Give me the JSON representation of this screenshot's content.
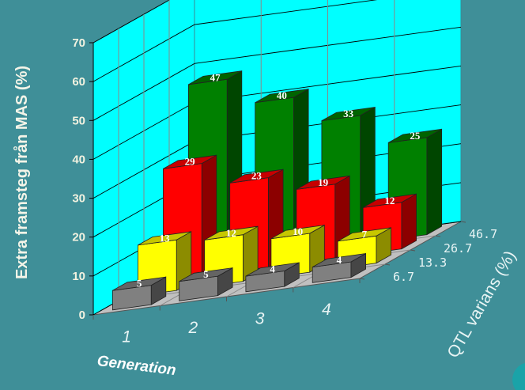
{
  "chart_data": {
    "type": "bar",
    "variant": "3d-grouped",
    "title": "",
    "ylabel": "Extra framsteg från MAS (%)",
    "xlabel": "Generation",
    "zlabel": "QTL varians (%)",
    "categories": [
      "1",
      "2",
      "3",
      "4"
    ],
    "yticks": [
      "0",
      "10",
      "20",
      "30",
      "40",
      "50",
      "60",
      "70"
    ],
    "ylim": [
      0,
      70
    ],
    "grid": true,
    "series": [
      {
        "name": "6.7",
        "color": "#808080",
        "values": [
          5,
          5,
          4,
          4
        ],
        "labels": [
          "5",
          "5",
          "4",
          "4"
        ]
      },
      {
        "name": "13.3",
        "color": "#ffff00",
        "values": [
          13,
          12,
          10,
          7
        ],
        "labels": [
          "13",
          "12",
          "10",
          "7"
        ]
      },
      {
        "name": "26.7",
        "color": "#ff0000",
        "values": [
          29,
          23,
          19,
          12
        ],
        "labels": [
          "29",
          "23",
          "19",
          "12"
        ]
      },
      {
        "name": "46.7",
        "color": "#008000",
        "values": [
          47,
          40,
          33,
          25
        ],
        "labels": [
          "47",
          "40",
          "33",
          "25"
        ]
      }
    ],
    "colors": {
      "background": "#3f8f98",
      "back_wall": "#00ffff",
      "left_wall": "#00ffff",
      "floor": "#c0c0c0",
      "grid": "#000000"
    }
  }
}
